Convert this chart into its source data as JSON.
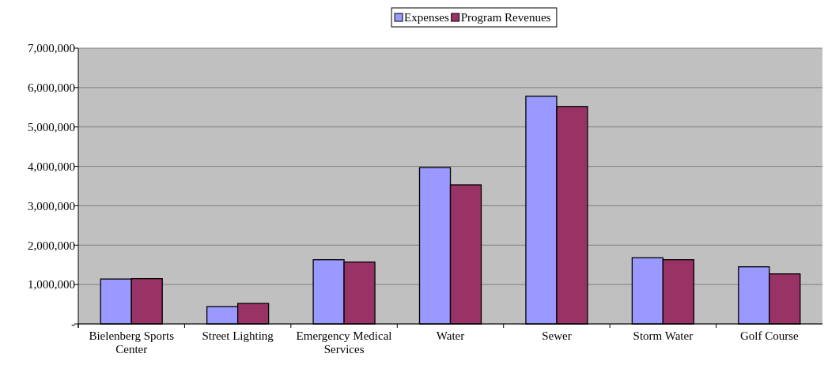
{
  "chart_data": {
    "type": "bar",
    "categories": [
      "Bielenberg Sports Center",
      "Street Lighting",
      "Emergency Medical Services",
      "Water",
      "Sewer",
      "Storm Water",
      "Golf Course"
    ],
    "series": [
      {
        "name": "Expenses",
        "color": "#9999ff",
        "values": [
          1140000,
          440000,
          1630000,
          3970000,
          5780000,
          1680000,
          1450000
        ]
      },
      {
        "name": "Program Revenues",
        "color": "#993366",
        "values": [
          1150000,
          520000,
          1570000,
          3530000,
          5520000,
          1630000,
          1270000
        ]
      }
    ],
    "ylim": [
      0,
      7000000
    ],
    "yticks": [
      {
        "value": 0,
        "label": "-"
      },
      {
        "value": 1000000,
        "label": "1,000,000"
      },
      {
        "value": 2000000,
        "label": "2,000,000"
      },
      {
        "value": 3000000,
        "label": "3,000,000"
      },
      {
        "value": 4000000,
        "label": "4,000,000"
      },
      {
        "value": 5000000,
        "label": "5,000,000"
      },
      {
        "value": 6000000,
        "label": "6,000,000"
      },
      {
        "value": 7000000,
        "label": "7,000,000"
      }
    ],
    "grid": "y",
    "legend": "top"
  }
}
